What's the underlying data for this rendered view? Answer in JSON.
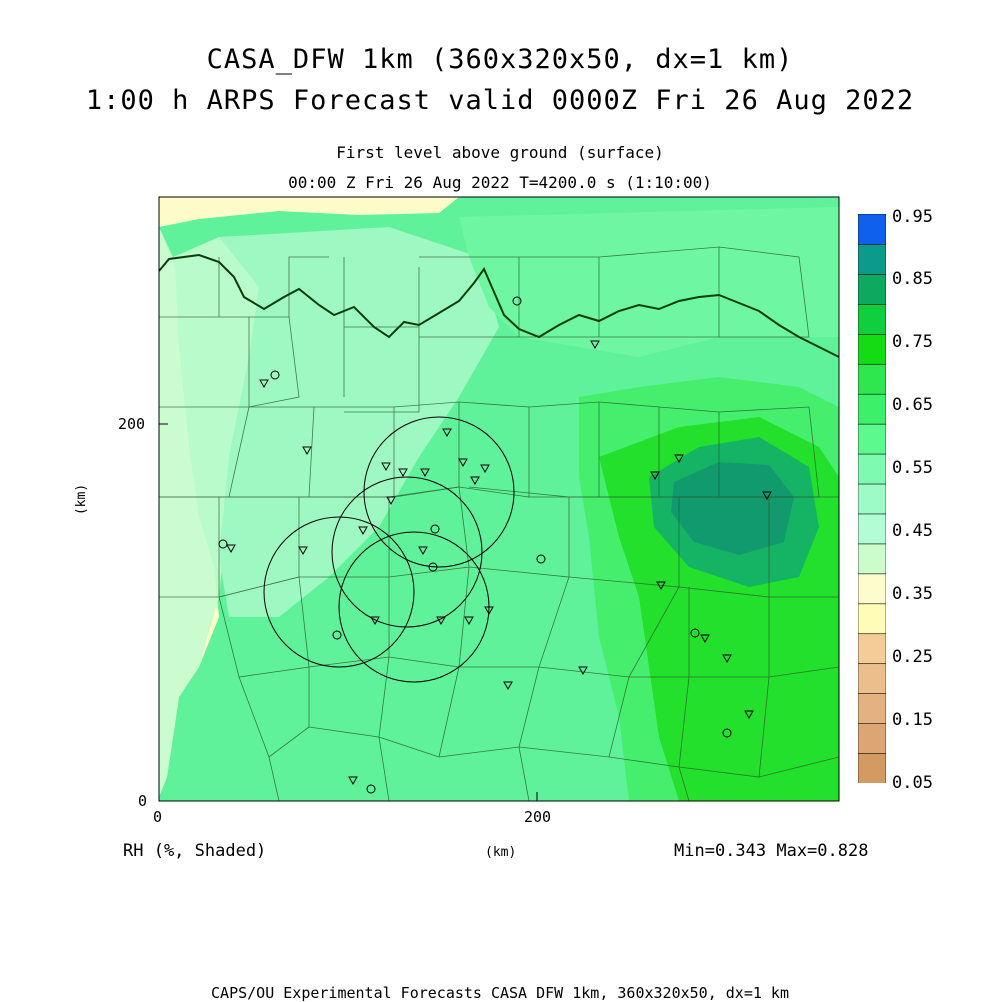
{
  "title": {
    "line1": "CASA_DFW 1km (360x320x50, dx=1 km)",
    "line2": "1:00 h ARPS Forecast valid 0000Z Fri 26 Aug 2022"
  },
  "subtitle": {
    "level": "First level above ground (surface)",
    "time": "00:00 Z Fri 26 Aug 2022   T=4200.0 s (1:10:00)"
  },
  "axes": {
    "x_ticks": [
      "0",
      "200"
    ],
    "y_ticks": [
      "0",
      "200"
    ],
    "x_unit": "(km)",
    "y_unit": "(km)"
  },
  "field_label": "RH (%, Shaded)",
  "stats": "Min=0.343 Max=0.828",
  "colorbar": {
    "labels": [
      "0.95",
      "0.85",
      "0.75",
      "0.65",
      "0.55",
      "0.45",
      "0.35",
      "0.25",
      "0.15",
      "0.05"
    ],
    "colors": [
      "#d39a62",
      "#dba673",
      "#e3b280",
      "#ebbe8c",
      "#f4cc98",
      "#fefcb6",
      "#fdfccd",
      "#ccfccc",
      "#b2fcd6",
      "#9cfbc6",
      "#7efbb0",
      "#5cf98f",
      "#3df06a",
      "#2ee74f",
      "#14dc14",
      "#0fcf3e",
      "#0ea85e",
      "#0c9a8c",
      "#1060f0"
    ],
    "colors_order": "bottom-to-top"
  },
  "footer": "CAPS/OU Experimental Forecasts  CASA DFW 1km, 360x320x50, dx=1 km",
  "map_colors": {
    "background": "#5ff29a",
    "dry_yellow": "#fdfcc8",
    "pale": "#c4fcd0",
    "light": "#9df8c2",
    "mid": "#6ff6a2",
    "green": "#46ee6e",
    "bright": "#22e02c",
    "dark": "#14b464",
    "darkest": "#109a6e"
  }
}
